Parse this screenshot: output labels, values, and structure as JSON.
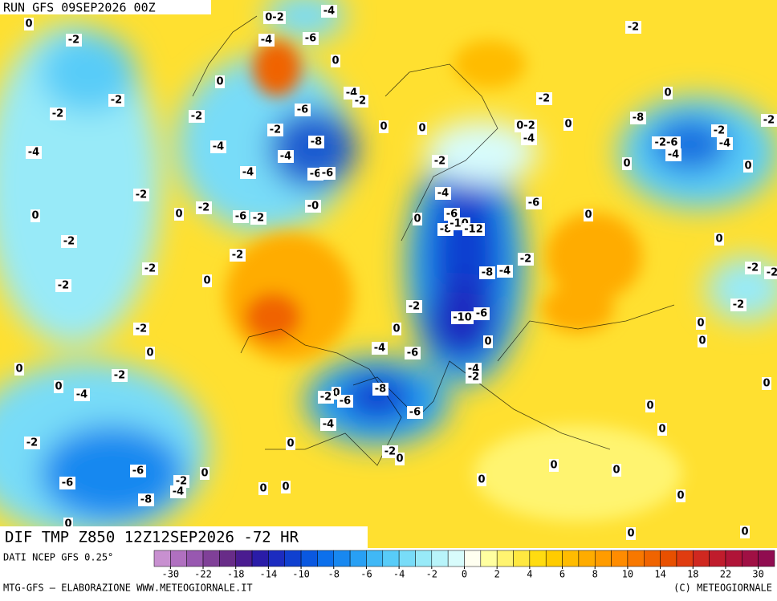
{
  "header": {
    "run": "RUN GFS 09SEP2026 00Z",
    "title": "DIF TMP Z850 12Z12SEP2026 -72 HR"
  },
  "map": {
    "contour_labels": [
      "0",
      "-2",
      "0-2",
      "-4",
      "-4",
      "-6",
      "-2",
      "0",
      "0",
      "-2",
      "-4",
      "-2",
      "0",
      "-2",
      "-2",
      "-6",
      "-2",
      "0-2",
      "0",
      "-8",
      "0",
      "0",
      "-2",
      "-4",
      "-2",
      "-4",
      "-2",
      "-4",
      "-4",
      "-8",
      "-2-6",
      "-4",
      "-4",
      "-2",
      "0",
      "0",
      "-4",
      "-6",
      "-6",
      "-2",
      "-4",
      "-6",
      "-0",
      "-2",
      "0",
      "0",
      "-6",
      "-2",
      "-6",
      "0",
      "-8",
      "-10",
      "-12",
      "0",
      "-2",
      "0",
      "-2",
      "-2",
      "-4",
      "-8",
      "-2",
      "-2",
      "-2",
      "0",
      "-2",
      "-2",
      "-2",
      "-10",
      "-6",
      "-2",
      "0",
      "0",
      "0",
      "0",
      "-4",
      "-6",
      "0",
      "0",
      "-2",
      "-4",
      "-2",
      "0",
      "-4",
      "0",
      "-8",
      "-2",
      "-6",
      "0",
      "-6",
      "0",
      "-4",
      "0",
      "-2",
      "0",
      "-2",
      "0",
      "0",
      "-6",
      "0",
      "0",
      "-2",
      "-6",
      "0",
      "-4",
      "0",
      "0",
      "-8",
      "0",
      "0",
      "0",
      "0"
    ]
  },
  "legend": {
    "source": "DATI NCEP GFS 0.25°",
    "ticks": [
      -30,
      -22,
      -18,
      -14,
      -10,
      -8,
      -6,
      -4,
      -2,
      0,
      2,
      4,
      6,
      8,
      10,
      14,
      18,
      22,
      30
    ],
    "colors": [
      "#c890d0",
      "#b070c0",
      "#9858b0",
      "#804098",
      "#682c88",
      "#4a1c90",
      "#2a1ca8",
      "#1c2cc0",
      "#1040d0",
      "#0a58e0",
      "#0c70ec",
      "#1888f0",
      "#28a0f4",
      "#40b8f6",
      "#58ccf8",
      "#78dcf8",
      "#98eaf8",
      "#b8f4fa",
      "#d8fcfc",
      "#fffff0",
      "#ffffa0",
      "#fff470",
      "#ffe840",
      "#ffdc10",
      "#ffcc00",
      "#ffbc00",
      "#ffac00",
      "#ff9c00",
      "#ff8c00",
      "#f87800",
      "#f06400",
      "#e85000",
      "#e03c10",
      "#d02820",
      "#c01c2c",
      "#b01438",
      "#a01044",
      "#900c50"
    ]
  },
  "footer": {
    "left": "MTG-GFS — ELABORAZIONE WWW.METEOGIORNALE.IT",
    "right": "(C) METEOGIORNALE"
  }
}
